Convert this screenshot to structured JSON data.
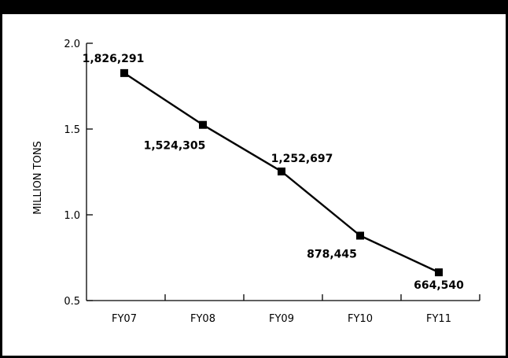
{
  "chart_data": {
    "type": "line",
    "title": "",
    "xlabel": "",
    "ylabel": "MILLION TONS",
    "categories": [
      "FY07",
      "FY08",
      "FY09",
      "FY10",
      "FY11"
    ],
    "y_ticks": [
      "2.0",
      "1.5",
      "1.0",
      "0.5"
    ],
    "ylim": [
      0.5,
      2.0
    ],
    "grid": false,
    "series": [
      {
        "values": [
          1.826291,
          1.524305,
          1.252697,
          0.878445,
          0.66454
        ],
        "labels": [
          "1,826,291",
          "1,524,305",
          "1,252,697",
          "878,445",
          "664,540"
        ]
      }
    ]
  }
}
